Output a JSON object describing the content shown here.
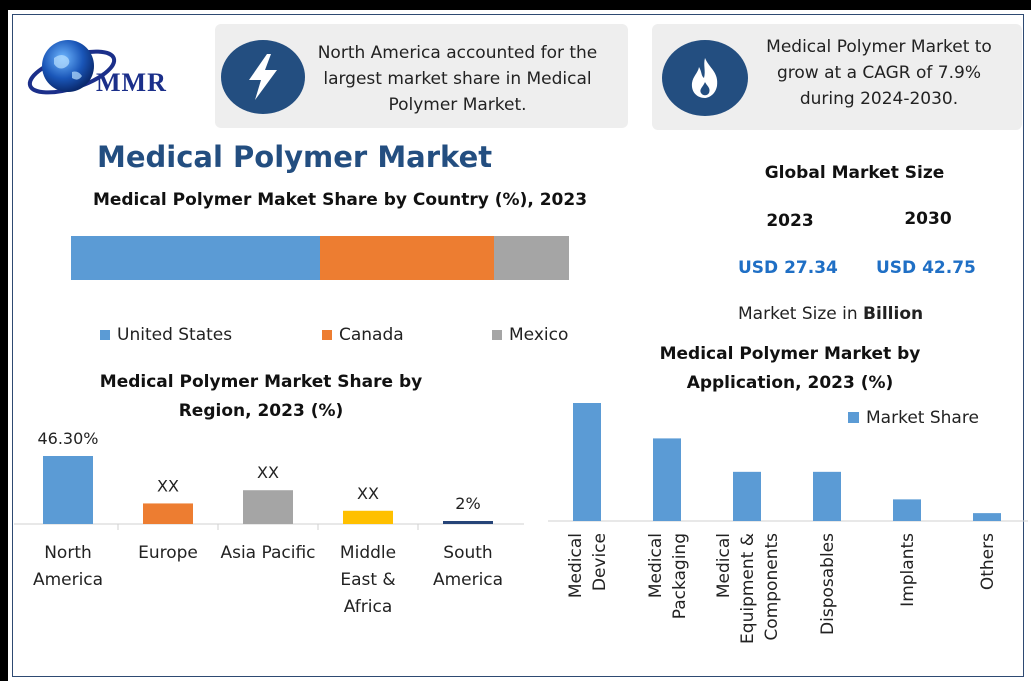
{
  "brand": {
    "logo_text": "MMR"
  },
  "banner_left": {
    "icon": "lightning-icon",
    "text": "North America accounted for the largest market share in Medical Polymer Market."
  },
  "banner_right": {
    "icon": "flame-icon",
    "text": "Medical Polymer Market to grow at a CAGR of 7.9% during 2024-2030."
  },
  "page_title": "Medical Polymer Market",
  "market_size": {
    "heading": "Global Market Size",
    "year_a": "2023",
    "year_b": "2030",
    "value_a": "USD 27.34",
    "value_b": "USD 42.75",
    "unit_prefix": "Market Size in",
    "unit_bold": "Billion"
  },
  "chart_data": [
    {
      "type": "bar",
      "orientation": "horizontal-stacked",
      "title": "Medical Polymer Maket Share by Country  (%), 2023",
      "categories": [
        "United States",
        "Canada",
        "Mexico"
      ],
      "values": [
        50,
        35,
        15
      ],
      "colors": [
        "#5b9bd5",
        "#ed7d31",
        "#a5a5a5"
      ],
      "legend": "bottom"
    },
    {
      "type": "bar",
      "title": "Medical Polymer Market Share by Region, 2023 (%)",
      "categories": [
        "North America",
        "Europe",
        "Asia Pacific",
        "Middle East & Africa",
        "South America"
      ],
      "tick_labels": [
        [
          "North",
          "America"
        ],
        [
          "Europe"
        ],
        [
          "Asia Pacific"
        ],
        [
          "Middle",
          "East &",
          "Africa"
        ],
        [
          "South",
          "America"
        ]
      ],
      "values": [
        46.3,
        14,
        23,
        9,
        2
      ],
      "data_labels": [
        "46.30%",
        "XX",
        "XX",
        "XX",
        "2%"
      ],
      "colors": [
        "#5b9bd5",
        "#ed7d31",
        "#a5a5a5",
        "#ffc000",
        "#264478"
      ],
      "ylim": [
        0,
        60
      ]
    },
    {
      "type": "bar",
      "title": "Medical Polymer Market by Application, 2023 (%)",
      "categories": [
        "Medical Device",
        "Medical Packaging",
        "Medical Equipment & Components",
        "Disposables",
        "Implants",
        "Others"
      ],
      "tick_labels": [
        [
          "Medical",
          "Device"
        ],
        [
          "Medical",
          "Packaging"
        ],
        [
          "Medical",
          "Equipment &",
          "Components"
        ],
        [
          "Disposables"
        ],
        [
          "Implants"
        ],
        [
          "Others"
        ]
      ],
      "series": [
        {
          "name": "Market Share",
          "values": [
            30,
            21,
            12.5,
            12.5,
            5.5,
            2
          ]
        }
      ],
      "colors": [
        "#5b9bd5"
      ],
      "legend": "top-right",
      "ylim": [
        0,
        32
      ]
    }
  ]
}
